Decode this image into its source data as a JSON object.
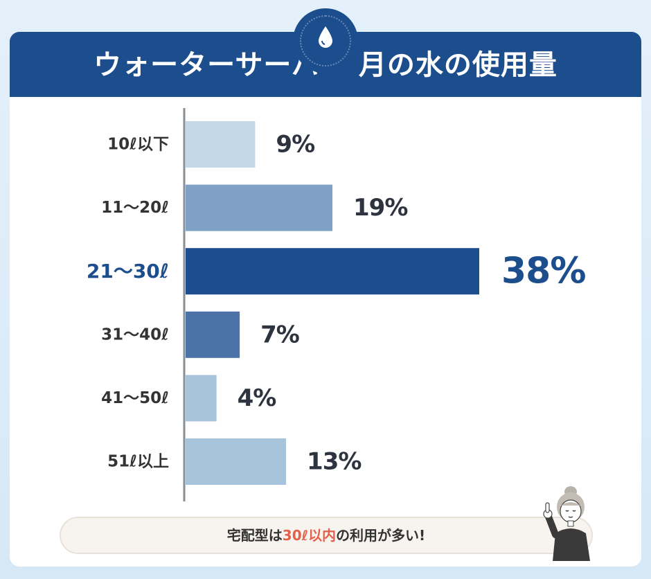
{
  "title": "ウォーターサーバー 月の水の使用量",
  "caption": {
    "prefix": "宅配型は",
    "highlight": "30ℓ以内",
    "suffix": "の利用が多い!"
  },
  "colors": {
    "header": "#1c4d8c",
    "highlight_text": "#e2604c",
    "highlight_label": "#1c4d8c",
    "label": "#333333"
  },
  "chart_data": {
    "type": "bar",
    "orientation": "horizontal",
    "title": "ウォーターサーバー 月の水の使用量",
    "categories": [
      "10ℓ以下",
      "11～20ℓ",
      "21～30ℓ",
      "31～40ℓ",
      "41～50ℓ",
      "51ℓ以上"
    ],
    "values": [
      9,
      19,
      38,
      7,
      4,
      13
    ],
    "value_labels": [
      "9%",
      "19%",
      "38%",
      "7%",
      "4%",
      "13%"
    ],
    "bar_colors": [
      "#c5d8e8",
      "#7ea1c5",
      "#1c4d8c",
      "#4b73a8",
      "#a8c4dd",
      "#a8c4dd"
    ],
    "highlight_index": 2,
    "xlim": [
      0,
      38
    ],
    "grid": false
  }
}
